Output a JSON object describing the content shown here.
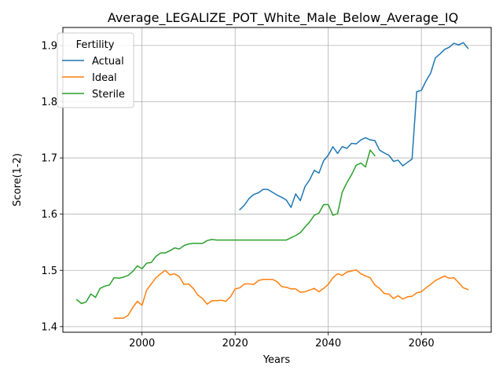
{
  "chart_data": {
    "type": "line",
    "title": "Average_LEGALIZE_POT_White_Male_Below_Average_IQ",
    "xlabel": "Years",
    "ylabel": "Score(1-2)",
    "xlim": [
      1983,
      2075
    ],
    "ylim": [
      1.39,
      1.932
    ],
    "xticks": [
      2000,
      2020,
      2040,
      2060
    ],
    "yticks": [
      1.4,
      1.5,
      1.6,
      1.7,
      1.8,
      1.9
    ],
    "ytick_labels": [
      "1.4",
      "1.5",
      "1.6",
      "1.7",
      "1.8",
      "1.9"
    ],
    "grid": true,
    "legend": {
      "title": "Fertility",
      "placement": "top-left"
    },
    "series": [
      {
        "name": "Actual",
        "color": "#1f77b4",
        "x": [
          2021,
          2022,
          2023,
          2024,
          2025,
          2026,
          2027,
          2028,
          2029,
          2030,
          2031,
          2032,
          2033,
          2034,
          2035,
          2036,
          2037,
          2038,
          2039,
          2040,
          2041,
          2042,
          2043,
          2044,
          2045,
          2046,
          2047,
          2048,
          2049,
          2050,
          2051,
          2052,
          2053,
          2054,
          2055,
          2056,
          2057,
          2058,
          2059,
          2060,
          2061,
          2062,
          2063,
          2064,
          2065,
          2066,
          2067,
          2068,
          2069,
          2070
        ],
        "y": [
          1.608,
          1.616,
          1.628,
          1.635,
          1.638,
          1.644,
          1.644,
          1.639,
          1.634,
          1.63,
          1.625,
          1.612,
          1.636,
          1.624,
          1.649,
          1.661,
          1.678,
          1.673,
          1.695,
          1.705,
          1.72,
          1.708,
          1.72,
          1.717,
          1.726,
          1.725,
          1.732,
          1.736,
          1.732,
          1.731,
          1.714,
          1.709,
          1.705,
          1.694,
          1.696,
          1.686,
          1.692,
          1.698,
          1.818,
          1.82,
          1.837,
          1.851,
          1.878,
          1.885,
          1.893,
          1.897,
          1.904,
          1.901,
          1.905,
          1.895
        ]
      },
      {
        "name": "Ideal",
        "color": "#ff7f0e",
        "x": [
          1994,
          1995,
          1996,
          1997,
          1998,
          1999,
          2000,
          2001,
          2002,
          2003,
          2004,
          2005,
          2006,
          2007,
          2008,
          2009,
          2010,
          2011,
          2012,
          2013,
          2014,
          2015,
          2016,
          2017,
          2018,
          2019,
          2020,
          2021,
          2022,
          2023,
          2024,
          2025,
          2026,
          2027,
          2028,
          2029,
          2030,
          2031,
          2032,
          2033,
          2034,
          2035,
          2036,
          2037,
          2038,
          2039,
          2040,
          2041,
          2042,
          2043,
          2044,
          2045,
          2046,
          2047,
          2048,
          2049,
          2050,
          2051,
          2052,
          2053,
          2054,
          2055,
          2056,
          2057,
          2058,
          2059,
          2060,
          2061,
          2062,
          2063,
          2064,
          2065,
          2066,
          2067,
          2068,
          2069,
          2070
        ],
        "y": [
          1.415,
          1.415,
          1.415,
          1.42,
          1.434,
          1.445,
          1.438,
          1.465,
          1.476,
          1.487,
          1.494,
          1.5,
          1.492,
          1.494,
          1.489,
          1.475,
          1.476,
          1.468,
          1.456,
          1.45,
          1.44,
          1.446,
          1.446,
          1.447,
          1.445,
          1.453,
          1.467,
          1.469,
          1.476,
          1.476,
          1.475,
          1.482,
          1.484,
          1.484,
          1.484,
          1.48,
          1.471,
          1.47,
          1.467,
          1.467,
          1.461,
          1.462,
          1.465,
          1.468,
          1.462,
          1.468,
          1.475,
          1.487,
          1.494,
          1.491,
          1.497,
          1.499,
          1.501,
          1.494,
          1.49,
          1.487,
          1.474,
          1.468,
          1.459,
          1.458,
          1.45,
          1.455,
          1.449,
          1.453,
          1.454,
          1.46,
          1.462,
          1.469,
          1.475,
          1.482,
          1.486,
          1.49,
          1.486,
          1.487,
          1.478,
          1.469,
          1.466
        ]
      },
      {
        "name": "Sterile",
        "color": "#2ca02c",
        "x": [
          1986,
          1987,
          1988,
          1989,
          1990,
          1991,
          1992,
          1993,
          1994,
          1995,
          1996,
          1997,
          1998,
          1999,
          2000,
          2001,
          2002,
          2003,
          2004,
          2005,
          2006,
          2007,
          2008,
          2009,
          2010,
          2011,
          2012,
          2013,
          2014,
          2015,
          2016,
          2017,
          2018,
          2019,
          2020,
          2021,
          2022,
          2023,
          2024,
          2025,
          2026,
          2027,
          2028,
          2029,
          2030,
          2031,
          2032,
          2033,
          2034,
          2035,
          2036,
          2037,
          2038,
          2039,
          2040,
          2041,
          2042,
          2043,
          2044,
          2045,
          2046,
          2047,
          2048,
          2049,
          2050
        ],
        "y": [
          1.448,
          1.441,
          1.444,
          1.458,
          1.452,
          1.468,
          1.472,
          1.474,
          1.487,
          1.486,
          1.488,
          1.491,
          1.498,
          1.508,
          1.503,
          1.513,
          1.514,
          1.525,
          1.531,
          1.531,
          1.535,
          1.54,
          1.538,
          1.544,
          1.547,
          1.548,
          1.548,
          1.548,
          1.553,
          1.555,
          1.554,
          1.554,
          1.554,
          1.554,
          1.554,
          1.554,
          1.554,
          1.554,
          1.554,
          1.554,
          1.554,
          1.554,
          1.554,
          1.554,
          1.554,
          1.554,
          1.558,
          1.562,
          1.567,
          1.577,
          1.586,
          1.598,
          1.602,
          1.617,
          1.617,
          1.598,
          1.601,
          1.639,
          1.656,
          1.67,
          1.687,
          1.691,
          1.684,
          1.714,
          1.704
        ]
      }
    ]
  }
}
